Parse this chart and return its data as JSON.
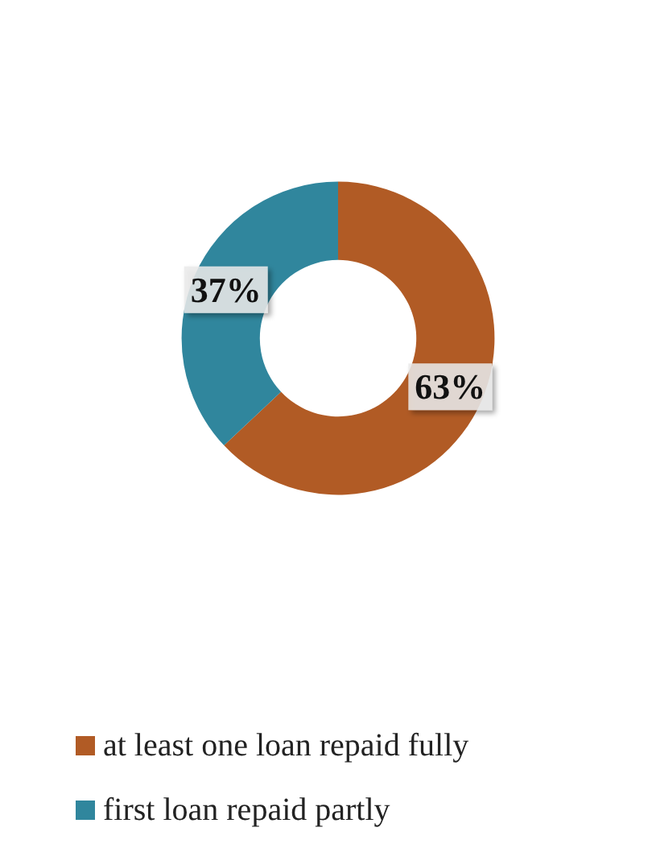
{
  "chart_data": {
    "type": "donut",
    "categories": [
      "at least one loan repaid fully",
      "first loan repaid partly"
    ],
    "values": [
      63,
      37
    ],
    "colors": [
      "#b15b25",
      "#30869d"
    ],
    "value_labels": [
      "63%",
      "37%"
    ],
    "legend": "bottom"
  }
}
